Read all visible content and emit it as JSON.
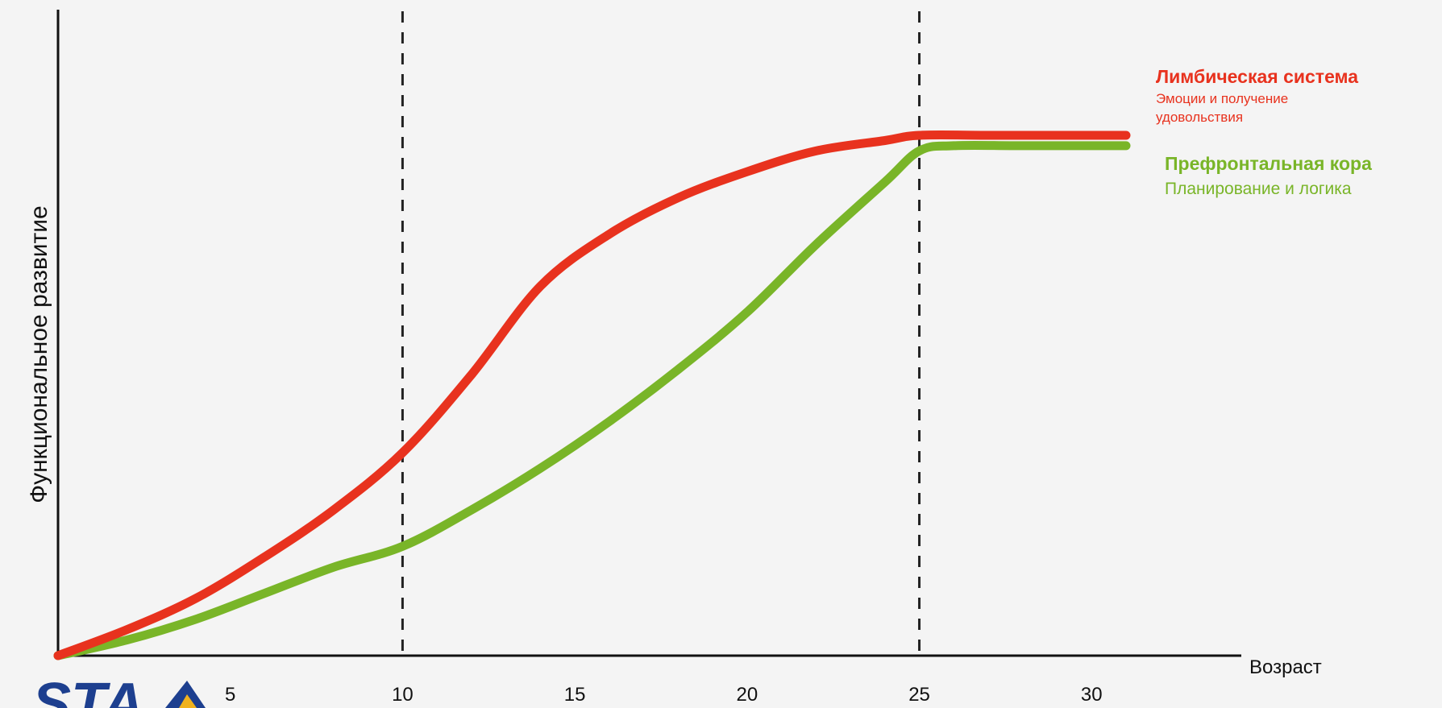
{
  "chart_data": {
    "type": "line",
    "xlabel": "Возраст",
    "ylabel": "Функциональное  развитие",
    "x_ticks": [
      5,
      10,
      15,
      20,
      25,
      30
    ],
    "xlim": [
      0,
      31
    ],
    "ylim": [
      0,
      100
    ],
    "reference_lines_x": [
      10,
      25
    ],
    "series": [
      {
        "name": "Лимбическая система",
        "description": "Эмоции и получение удовольствия",
        "color": "#e8321e",
        "x": [
          0,
          2,
          4,
          6,
          8,
          10,
          12,
          14,
          16,
          18,
          20,
          22,
          24,
          25,
          27,
          29,
          31
        ],
        "y": [
          0,
          5,
          11,
          19,
          28,
          39,
          54,
          71,
          81,
          88,
          93,
          97,
          99,
          100,
          100,
          100,
          100
        ]
      },
      {
        "name": "Префронтальная кора",
        "description": "Планирование и логика",
        "color": "#79b528",
        "x": [
          0,
          2,
          4,
          6,
          8,
          10,
          12,
          14,
          16,
          18,
          20,
          22,
          24,
          25,
          26,
          28,
          31
        ],
        "y": [
          0,
          3,
          7,
          12,
          17,
          21,
          28,
          36,
          45,
          55,
          66,
          79,
          91,
          97,
          98,
          98,
          98
        ]
      }
    ],
    "grid": false,
    "legend_placement": "right"
  }
}
